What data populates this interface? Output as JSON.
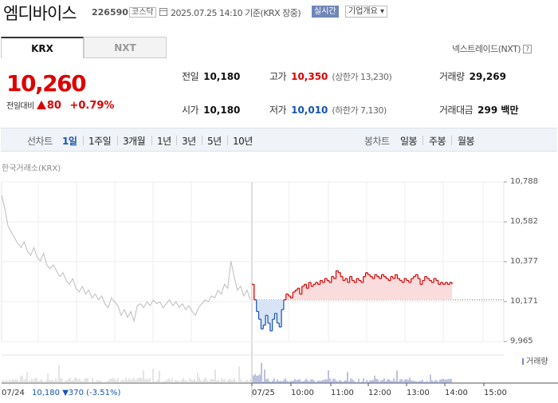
{
  "header": {
    "title": "엠디바이스",
    "code": "226590",
    "market": "코스닥",
    "as_of": "2025.07.25 14:10 기준(KRX 장중)",
    "realtime_label": "실시간",
    "company_info_label": "기업개요 ▾"
  },
  "tabs": [
    {
      "label": "KRX",
      "active": true
    },
    {
      "label": "NXT",
      "active": false
    }
  ],
  "nextrade_link": "넥스트레이드(NXT)",
  "nextrade_help": "?",
  "quote": {
    "price": "10,260",
    "change_label": "전일대비",
    "change": "80",
    "change_pct": "+0.79%",
    "up_color": "#d00000",
    "down_color": "#1553b8"
  },
  "stats": {
    "prev_label": "전일",
    "prev": "10,180",
    "high_label": "고가",
    "high": "10,350",
    "upper_limit": "(상한가 13,230)",
    "volume_label": "거래량",
    "volume": "29,269",
    "open_label": "시가",
    "open": "10,180",
    "low_label": "저가",
    "low": "10,010",
    "lower_limit": "(하한가 7,130)",
    "amount_label": "거래대금",
    "amount": "299 백만"
  },
  "period_bar": {
    "line_label": "선차트",
    "line_options": [
      "1일",
      "1주일",
      "3개월",
      "1년",
      "3년",
      "5년",
      "10년"
    ],
    "selected": "1일",
    "candle_label": "봉차트",
    "candle_options": [
      "일봉",
      "주봉",
      "월봉"
    ]
  },
  "chart_data": {
    "type": "line",
    "exchange_label": "한국거래소(KRX)",
    "y_ticks": [
      "10,788",
      "10,582",
      "10,377",
      "10,171",
      "9,965"
    ],
    "ylim": [
      9965,
      10788
    ],
    "prev_close": 10180,
    "x_ticks": [
      "07/24",
      "07/25",
      "10:00",
      "11:00",
      "12:00",
      "13:00",
      "14:00",
      "15:00"
    ],
    "volume_legend": "거래량",
    "prev_day_summary": {
      "date": "07/24",
      "close": "10,180",
      "change": "▼370",
      "change_pct": "(-3.51%)"
    },
    "prev_day_series": [
      10720,
      10650,
      10560,
      10530,
      10500,
      10470,
      10450,
      10480,
      10430,
      10410,
      10450,
      10400,
      10380,
      10420,
      10360,
      10340,
      10360,
      10330,
      10300,
      10320,
      10280,
      10260,
      10290,
      10240,
      10220,
      10250,
      10210,
      10230,
      10190,
      10210,
      10180,
      10200,
      10160,
      10140,
      10190,
      10170,
      10150,
      10100,
      10130,
      10090,
      10120,
      10070,
      10150,
      10160,
      10140,
      10170,
      10150,
      10180,
      10160,
      10170,
      10140,
      10160,
      10180,
      10150,
      10170,
      10140,
      10160,
      10130,
      10150,
      10120,
      10100,
      10140,
      10160,
      10180,
      10170,
      10200,
      10190,
      10230,
      10210,
      10260,
      10240,
      10380,
      10300,
      10230,
      10250,
      10200,
      10230,
      10180
    ],
    "today_series": [
      10260,
      10180,
      10120,
      10080,
      10030,
      10050,
      10100,
      10060,
      10020,
      10080,
      10110,
      10060,
      10040,
      10130,
      10180,
      10210,
      10200,
      10190,
      10220,
      10230,
      10240,
      10210,
      10250,
      10260,
      10240,
      10270,
      10250,
      10260,
      10270,
      10260,
      10280,
      10270,
      10290,
      10280,
      10270,
      10300,
      10290,
      10330,
      10320,
      10300,
      10280,
      10290,
      10270,
      10300,
      10280,
      10270,
      10290,
      10280,
      10270,
      10300,
      10320,
      10310,
      10300,
      10290,
      10310,
      10300,
      10290,
      10310,
      10300,
      10290,
      10280,
      10300,
      10290,
      10310,
      10290,
      10280,
      10270,
      10290,
      10280,
      10270,
      10290,
      10300,
      10310,
      10290,
      10260,
      10280,
      10300,
      10290,
      10280,
      10270,
      10290,
      10280,
      10260,
      10270,
      10260,
      10270,
      10260,
      10270,
      10260
    ]
  }
}
